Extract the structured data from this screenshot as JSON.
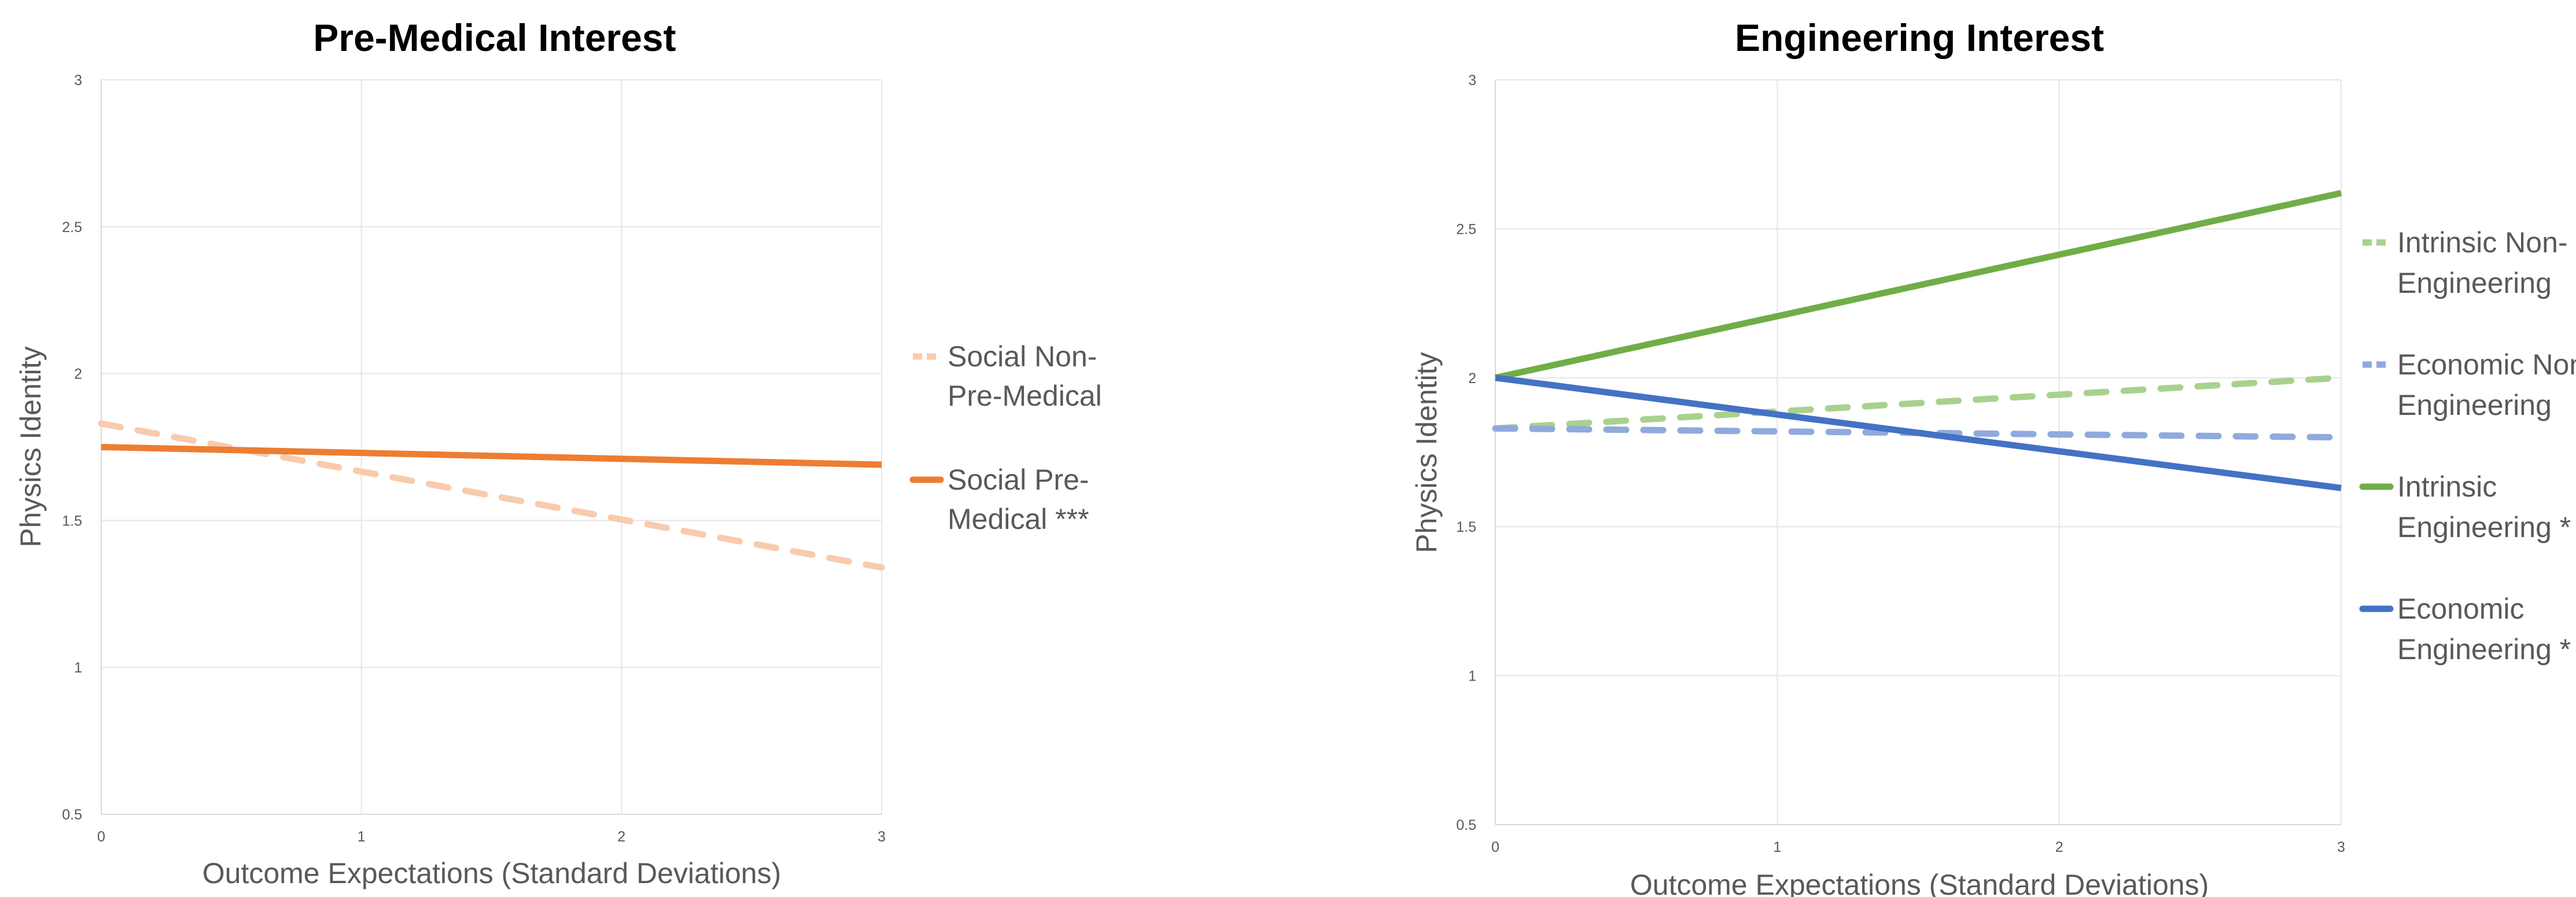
{
  "chart_data": [
    {
      "type": "line",
      "title": "Pre-Medical Interest",
      "xlabel": "Outcome Expectations (Standard Deviations)",
      "ylabel": "Physics Identity",
      "xlim": [
        0,
        3
      ],
      "ylim": [
        0.5,
        3
      ],
      "xticks": [
        "0",
        "1",
        "2",
        "3"
      ],
      "yticks": [
        "0.5",
        "1",
        "1.5",
        "2",
        "2.5",
        "3"
      ],
      "grid": true,
      "legend_position": "right",
      "series": [
        {
          "name": "Social Non-Pre-Medical",
          "legend_lines": [
            "Social Non-",
            "Pre-Medical"
          ],
          "color": "#f8cbad",
          "style": "dashed",
          "x": [
            0,
            3
          ],
          "y": [
            1.83,
            1.34
          ]
        },
        {
          "name": "Social Pre-Medical ***",
          "legend_lines": [
            "Social Pre-",
            "Medical ***"
          ],
          "color": "#ed7d31",
          "style": "solid",
          "x": [
            0,
            3
          ],
          "y": [
            1.75,
            1.69
          ]
        }
      ]
    },
    {
      "type": "line",
      "title": "Engineering Interest",
      "xlabel": "Outcome Expectations (Standard Deviations)",
      "ylabel": "Physics Identity",
      "xlim": [
        0,
        3
      ],
      "ylim": [
        0.5,
        3
      ],
      "xticks": [
        "0",
        "1",
        "2",
        "3"
      ],
      "yticks": [
        "0.5",
        "1",
        "1.5",
        "2",
        "2.5",
        "3"
      ],
      "grid": true,
      "legend_position": "right",
      "series": [
        {
          "name": "Intrinsic Non-Engineering",
          "legend_lines": [
            "Intrinsic Non-",
            "Engineering"
          ],
          "color": "#a9d18e",
          "style": "dashed",
          "x": [
            0,
            3
          ],
          "y": [
            1.83,
            2.0
          ]
        },
        {
          "name": "Economic Non-Engineering",
          "legend_lines": [
            "Economic Non-",
            "Engineering"
          ],
          "color": "#8faadc",
          "style": "dashed",
          "x": [
            0,
            3
          ],
          "y": [
            1.83,
            1.8
          ]
        },
        {
          "name": "Intrinsic Engineering *",
          "legend_lines": [
            "Intrinsic",
            "Engineering *"
          ],
          "color": "#70ad47",
          "style": "solid",
          "x": [
            0,
            3
          ],
          "y": [
            2.0,
            2.62
          ]
        },
        {
          "name": "Economic Engineering *",
          "legend_lines": [
            "Economic",
            "Engineering *"
          ],
          "color": "#4472c4",
          "style": "solid",
          "x": [
            0,
            3
          ],
          "y": [
            2.0,
            1.63
          ]
        }
      ]
    }
  ]
}
